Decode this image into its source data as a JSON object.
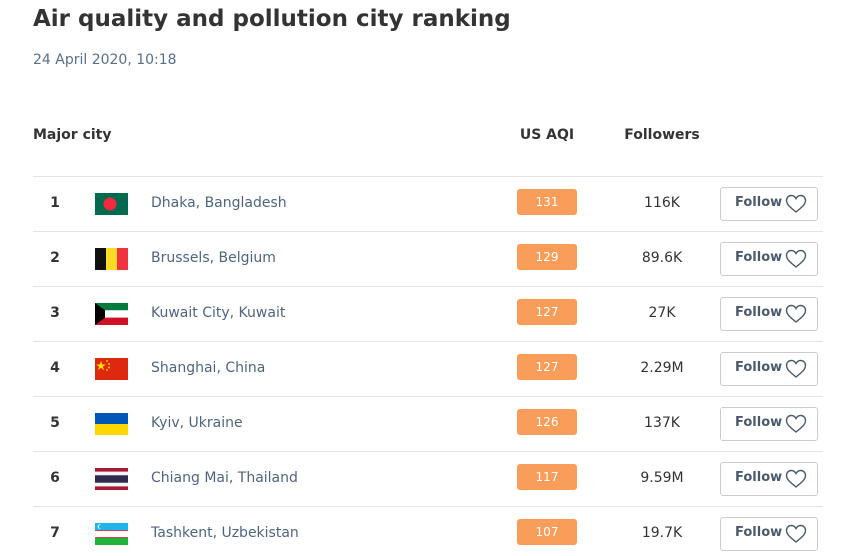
{
  "header": {
    "title": "Air quality and pollution city ranking",
    "date": "24 April 2020, 10:18"
  },
  "table": {
    "columns": [
      "Major city",
      "US AQI",
      "Followers"
    ],
    "follow_label": "Follow",
    "rows": [
      {
        "rank": 1,
        "city": "Dhaka, Bangladesh",
        "aqi": 131,
        "followers": "116K"
      },
      {
        "rank": 2,
        "city": "Brussels, Belgium",
        "aqi": 129,
        "followers": "89.6K"
      },
      {
        "rank": 3,
        "city": "Kuwait City, Kuwait",
        "aqi": 127,
        "followers": "27K"
      },
      {
        "rank": 4,
        "city": "Shanghai, China",
        "aqi": 127,
        "followers": "2.29M"
      },
      {
        "rank": 5,
        "city": "Kyiv, Ukraine",
        "aqi": 126,
        "followers": "137K"
      },
      {
        "rank": 6,
        "city": "Chiang Mai, Thailand",
        "aqi": 117,
        "followers": "9.59M"
      },
      {
        "rank": 7,
        "city": "Tashkent, Uzbekistan",
        "aqi": 107,
        "followers": "19.7K"
      }
    ]
  }
}
